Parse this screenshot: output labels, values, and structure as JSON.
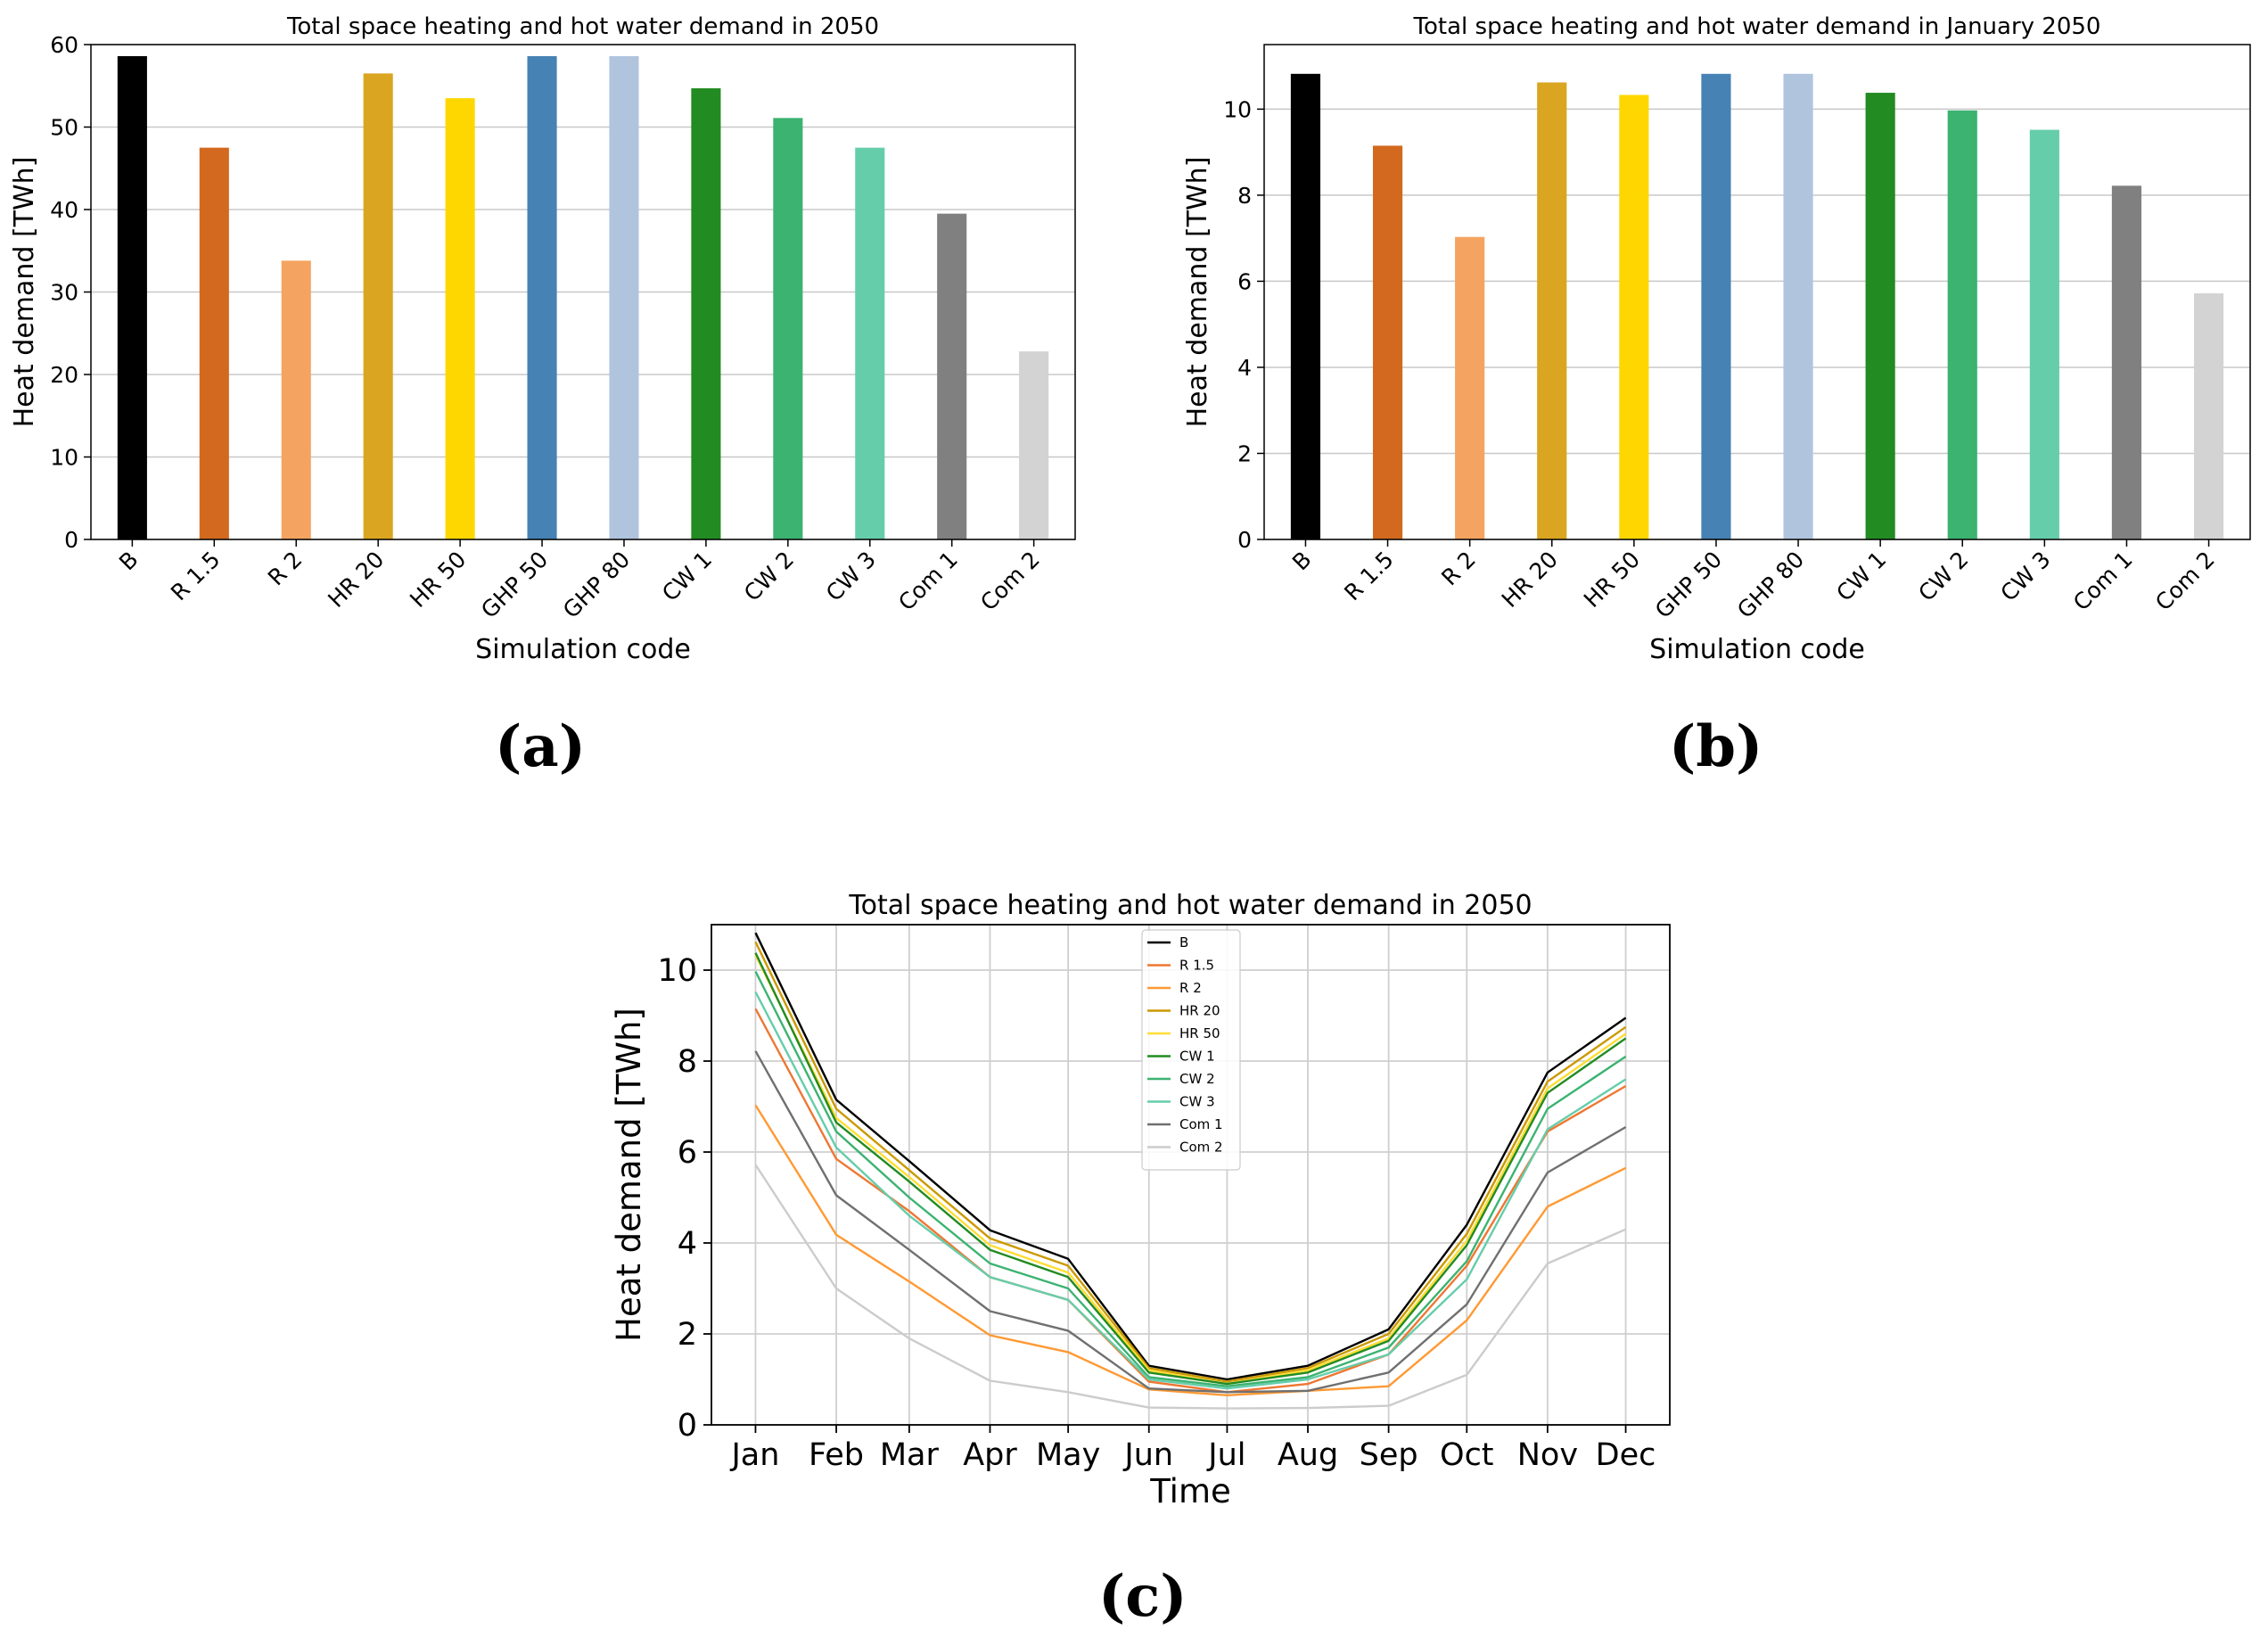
{
  "panel_labels": [
    "(a)",
    "(b)",
    "(c)"
  ],
  "chart_data": [
    {
      "type": "bar",
      "title": "Total space heating and hot water demand in 2050",
      "xlabel": "Simulation code",
      "ylabel": "Heat demand [TWh]",
      "ylim": [
        0,
        60
      ],
      "yticks": [
        0,
        10,
        20,
        30,
        40,
        50,
        60
      ],
      "grid": "horizontal",
      "categories": [
        "B",
        "R 1.5",
        "R 2",
        "HR 20",
        "HR 50",
        "GHP 50",
        "GHP 80",
        "CW 1",
        "CW 2",
        "CW 3",
        "Com 1",
        "Com 2"
      ],
      "values": [
        58.6,
        47.5,
        33.8,
        56.5,
        53.5,
        58.6,
        58.6,
        54.7,
        51.1,
        47.5,
        39.5,
        22.8
      ],
      "colors": [
        "#000000",
        "#d2691e",
        "#f4a460",
        "#daa520",
        "#ffd700",
        "#4682b4",
        "#b0c4de",
        "#228b22",
        "#3cb371",
        "#66cdaa",
        "#808080",
        "#d3d3d3"
      ]
    },
    {
      "type": "bar",
      "title": "Total space heating and hot water demand in January 2050",
      "xlabel": "Simulation code",
      "ylabel": "Heat demand [TWh]",
      "ylim": [
        0,
        11.5
      ],
      "yticks": [
        0,
        2,
        4,
        6,
        8,
        10
      ],
      "grid": "horizontal",
      "categories": [
        "B",
        "R 1.5",
        "R 2",
        "HR 20",
        "HR 50",
        "GHP 50",
        "GHP 80",
        "CW 1",
        "CW 2",
        "CW 3",
        "Com 1",
        "Com 2"
      ],
      "values": [
        10.82,
        9.15,
        7.03,
        10.62,
        10.33,
        10.82,
        10.82,
        10.38,
        9.97,
        9.52,
        8.22,
        5.72
      ],
      "colors": [
        "#000000",
        "#d2691e",
        "#f4a460",
        "#daa520",
        "#ffd700",
        "#4682b4",
        "#b0c4de",
        "#228b22",
        "#3cb371",
        "#66cdaa",
        "#808080",
        "#d3d3d3"
      ]
    },
    {
      "type": "line",
      "title": "Total space heating and hot water demand in 2050",
      "xlabel": "Time",
      "ylabel": "Heat demand [TWh]",
      "ylim": [
        0,
        11
      ],
      "yticks": [
        0,
        2,
        4,
        6,
        8,
        10
      ],
      "grid": "both",
      "legend": "top-center",
      "x": [
        1,
        32,
        60,
        91,
        121,
        152,
        182,
        213,
        244,
        274,
        305,
        335
      ],
      "xticks": [
        "Jan",
        "Feb",
        "Mar",
        "Apr",
        "May",
        "Jun",
        "Jul",
        "Aug",
        "Sep",
        "Oct",
        "Nov",
        "Dec"
      ],
      "series": [
        {
          "name": "B",
          "color": "#000000",
          "values": [
            10.82,
            7.15,
            5.8,
            4.28,
            3.65,
            1.3,
            1.0,
            1.3,
            2.1,
            4.4,
            7.75,
            8.95
          ]
        },
        {
          "name": "R 1.5",
          "color": "#ee7733",
          "values": [
            9.15,
            5.85,
            4.7,
            3.25,
            2.75,
            0.95,
            0.72,
            0.9,
            1.55,
            3.5,
            6.45,
            7.45
          ]
        },
        {
          "name": "R 2",
          "color": "#ff9933",
          "values": [
            7.03,
            4.18,
            3.15,
            1.97,
            1.6,
            0.78,
            0.65,
            0.75,
            0.85,
            2.3,
            4.8,
            5.65
          ]
        },
        {
          "name": "HR 20",
          "color": "#cc9900",
          "values": [
            10.62,
            6.95,
            5.6,
            4.1,
            3.5,
            1.25,
            0.95,
            1.25,
            2.0,
            4.2,
            7.55,
            8.75
          ]
        },
        {
          "name": "HR 50",
          "color": "#ffdd33",
          "values": [
            10.33,
            6.75,
            5.45,
            3.95,
            3.35,
            1.2,
            0.9,
            1.2,
            1.9,
            4.05,
            7.4,
            8.6
          ]
        },
        {
          "name": "CW 1",
          "color": "#228b22",
          "values": [
            10.38,
            6.65,
            5.35,
            3.85,
            3.25,
            1.15,
            0.9,
            1.15,
            1.85,
            3.95,
            7.3,
            8.5
          ]
        },
        {
          "name": "CW 2",
          "color": "#3cb371",
          "values": [
            9.97,
            6.45,
            5.0,
            3.55,
            3.0,
            1.05,
            0.85,
            1.05,
            1.7,
            3.6,
            6.95,
            8.1
          ]
        },
        {
          "name": "CW 3",
          "color": "#66cdaa",
          "values": [
            9.52,
            6.1,
            4.6,
            3.25,
            2.75,
            1.0,
            0.8,
            1.0,
            1.55,
            3.2,
            6.5,
            7.6
          ]
        },
        {
          "name": "Com 1",
          "color": "#707070",
          "values": [
            8.22,
            5.05,
            3.85,
            2.5,
            2.07,
            0.8,
            0.72,
            0.75,
            1.15,
            2.65,
            5.55,
            6.55
          ]
        },
        {
          "name": "Com 2",
          "color": "#cccccc",
          "values": [
            5.72,
            3.0,
            1.9,
            0.97,
            0.72,
            0.38,
            0.36,
            0.37,
            0.42,
            1.1,
            3.55,
            4.3
          ]
        }
      ]
    }
  ]
}
